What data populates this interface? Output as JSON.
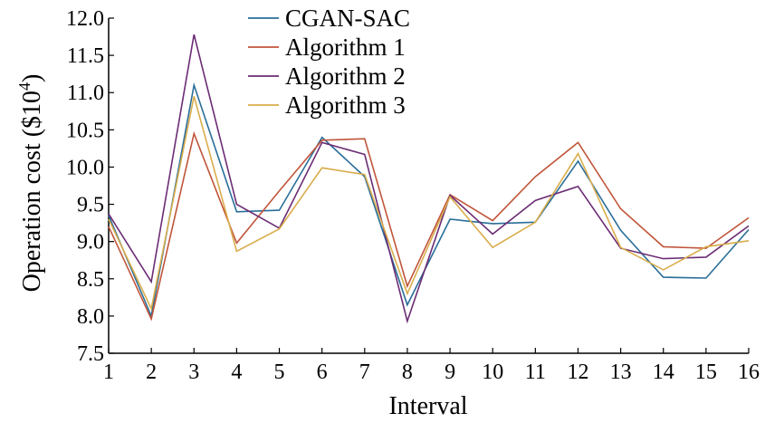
{
  "chart_data": {
    "type": "line",
    "title": "",
    "xlabel": "Interval",
    "ylabel": "Operation cost ($10",
    "ylabel_superscript": "4",
    "ylabel_suffix": ")",
    "x": [
      1,
      2,
      3,
      4,
      5,
      6,
      7,
      8,
      9,
      10,
      11,
      12,
      13,
      14,
      15,
      16
    ],
    "x_tick_labels": [
      "1",
      "2",
      "3",
      "4",
      "5",
      "6",
      "7",
      "8",
      "9",
      "10",
      "11",
      "12",
      "13",
      "14",
      "15",
      "16"
    ],
    "xlim": [
      1,
      16
    ],
    "ylim": [
      7.5,
      12.0
    ],
    "y_ticks": [
      7.5,
      8.0,
      8.5,
      9.0,
      9.5,
      10.0,
      10.5,
      11.0,
      11.5,
      12.0
    ],
    "y_tick_labels": [
      "7.5",
      "8.0",
      "8.5",
      "9.0",
      "9.5",
      "10.0",
      "10.5",
      "11.0",
      "11.5",
      "12.0"
    ],
    "grid": false,
    "legend_position": "top-center",
    "series": [
      {
        "name": "CGAN-SAC",
        "color": "#2a6e99",
        "values": [
          9.35,
          8.0,
          11.1,
          9.4,
          9.42,
          10.4,
          9.87,
          8.15,
          9.3,
          9.24,
          9.26,
          10.08,
          9.15,
          8.52,
          8.51,
          9.16
        ]
      },
      {
        "name": "Algorithm 1",
        "color": "#c0553a",
        "values": [
          9.2,
          7.96,
          10.45,
          8.98,
          9.68,
          10.36,
          10.38,
          8.4,
          9.63,
          9.28,
          9.87,
          10.33,
          9.44,
          8.93,
          8.91,
          9.32
        ]
      },
      {
        "name": "Algorithm 2",
        "color": "#6b2c74",
        "values": [
          9.37,
          8.46,
          11.78,
          9.5,
          9.18,
          10.33,
          10.17,
          7.93,
          9.62,
          9.1,
          9.55,
          9.74,
          8.91,
          8.77,
          8.79,
          9.21
        ]
      },
      {
        "name": "Algorithm 3",
        "color": "#d9ad4c",
        "values": [
          9.3,
          8.1,
          10.95,
          8.87,
          9.17,
          9.99,
          9.9,
          8.3,
          9.6,
          8.92,
          9.26,
          10.18,
          8.92,
          8.62,
          8.93,
          9.01
        ]
      }
    ]
  }
}
